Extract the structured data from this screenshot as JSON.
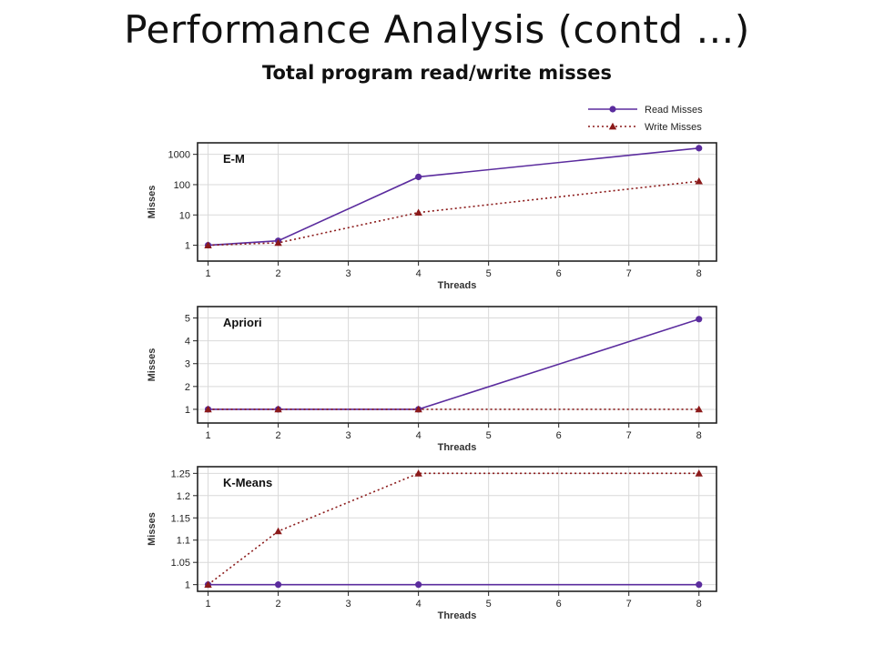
{
  "slide": {
    "title": "Performance Analysis (contd …)",
    "subtitle": "Total program read/write misses"
  },
  "legend": {
    "placement": "top-right",
    "entries": [
      {
        "name": "Read Misses",
        "color": "#5b2c9e",
        "style": "solid",
        "marker": "circle"
      },
      {
        "name": "Write Misses",
        "color": "#8b1a1a",
        "style": "dotted",
        "marker": "triangle"
      }
    ]
  },
  "chart_data": [
    {
      "type": "line",
      "label": "E-M",
      "scale": "log",
      "x": [
        1,
        2,
        4,
        8
      ],
      "xticks": [
        1,
        2,
        3,
        4,
        5,
        6,
        7,
        8
      ],
      "xlim": [
        0.85,
        8.25
      ],
      "yticks": [
        1,
        10,
        100,
        1000
      ],
      "ytick_labels": [
        "1",
        "10",
        "100",
        "1000"
      ],
      "ylim": [
        0.3,
        2400
      ],
      "xlabel": "Threads",
      "ylabel": "Misses",
      "grid": true,
      "series": [
        {
          "name": "Read Misses",
          "values": [
            1,
            1.4,
            180,
            1600
          ]
        },
        {
          "name": "Write Misses",
          "values": [
            1,
            1.2,
            12,
            130
          ]
        }
      ]
    },
    {
      "type": "line",
      "label": "Apriori",
      "scale": "linear",
      "x": [
        1,
        2,
        4,
        8
      ],
      "xticks": [
        1,
        2,
        3,
        4,
        5,
        6,
        7,
        8
      ],
      "xlim": [
        0.85,
        8.25
      ],
      "yticks": [
        1,
        2,
        3,
        4,
        5
      ],
      "ytick_labels": [
        "1",
        "2",
        "3",
        "4",
        "5"
      ],
      "ylim": [
        0.4,
        5.5
      ],
      "xlabel": "Threads",
      "ylabel": "Misses",
      "grid": true,
      "series": [
        {
          "name": "Read Misses",
          "values": [
            1,
            1,
            1,
            4.95
          ]
        },
        {
          "name": "Write Misses",
          "values": [
            1,
            1,
            1,
            1
          ]
        }
      ]
    },
    {
      "type": "line",
      "label": "K-Means",
      "scale": "linear",
      "x": [
        1,
        2,
        4,
        8
      ],
      "xticks": [
        1,
        2,
        3,
        4,
        5,
        6,
        7,
        8
      ],
      "xlim": [
        0.85,
        8.25
      ],
      "yticks": [
        1,
        1.05,
        1.1,
        1.15,
        1.2,
        1.25
      ],
      "ytick_labels": [
        "1",
        "1.05",
        "1.1",
        "1.15",
        "1.2",
        "1.25"
      ],
      "ylim": [
        0.985,
        1.265
      ],
      "xlabel": "Threads",
      "ylabel": "Misses",
      "grid": true,
      "series": [
        {
          "name": "Read Misses",
          "values": [
            1,
            1,
            1,
            1
          ]
        },
        {
          "name": "Write Misses",
          "values": [
            1,
            1.12,
            1.25,
            1.25
          ]
        }
      ]
    }
  ]
}
